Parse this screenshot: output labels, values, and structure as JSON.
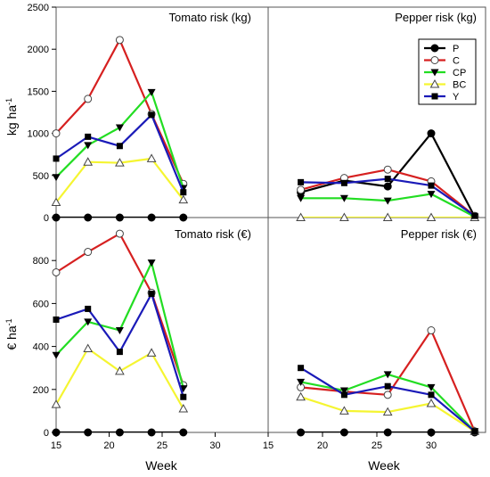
{
  "figure": {
    "ylabel_top": "kg ha",
    "ylabel_top_sup": "-1",
    "ylabel_bottom": "€ ha",
    "ylabel_bottom_sup": "-1",
    "xlabel": "Week"
  },
  "colors": {
    "P": "#000000",
    "C": "#d62020",
    "CP": "#22dd22",
    "BC": "#f5f531",
    "Y": "#1a1ab8"
  },
  "markers": {
    "P": "circle-filled",
    "C": "circle-open",
    "CP": "triangle-down-filled",
    "BC": "triangle-up-open",
    "Y": "square-filled"
  },
  "legend": {
    "placement": "top-right of Pepper risk (kg) panel",
    "entries": [
      "P",
      "C",
      "CP",
      "BC",
      "Y"
    ]
  },
  "chart_data": [
    {
      "type": "line",
      "title": "Tomato risk (kg)",
      "x": [
        15,
        18,
        21,
        24,
        27
      ],
      "xlim": [
        15,
        35
      ],
      "ylim": [
        0,
        2500
      ],
      "xticks": [],
      "yticks": [
        0,
        500,
        1000,
        1500,
        2000,
        2500
      ],
      "series": [
        {
          "name": "P",
          "values": [
            0,
            0,
            0,
            0,
            0
          ]
        },
        {
          "name": "C",
          "values": [
            1000,
            1410,
            2110,
            1230,
            400
          ]
        },
        {
          "name": "CP",
          "values": [
            480,
            860,
            1070,
            1490,
            350
          ]
        },
        {
          "name": "BC",
          "values": [
            180,
            660,
            650,
            700,
            210
          ]
        },
        {
          "name": "Y",
          "values": [
            700,
            960,
            850,
            1220,
            300
          ]
        }
      ]
    },
    {
      "type": "line",
      "title": "Pepper risk (kg)",
      "x": [
        18,
        22,
        26,
        30,
        34
      ],
      "xlim": [
        15,
        35
      ],
      "ylim": [
        0,
        2500
      ],
      "xticks": [],
      "yticks": [],
      "series": [
        {
          "name": "P",
          "values": [
            300,
            440,
            370,
            1000,
            10
          ]
        },
        {
          "name": "C",
          "values": [
            330,
            470,
            570,
            430,
            20
          ]
        },
        {
          "name": "CP",
          "values": [
            230,
            230,
            200,
            280,
            10
          ]
        },
        {
          "name": "BC",
          "values": [
            0,
            0,
            0,
            0,
            0
          ]
        },
        {
          "name": "Y",
          "values": [
            420,
            410,
            460,
            380,
            20
          ]
        }
      ]
    },
    {
      "type": "line",
      "title": "Tomato risk (€)",
      "x": [
        15,
        18,
        21,
        24,
        27
      ],
      "xlim": [
        15,
        35
      ],
      "ylim": [
        0,
        1000
      ],
      "xticks": [
        15,
        20,
        25,
        30
      ],
      "yticks": [
        0,
        200,
        400,
        600,
        800
      ],
      "series": [
        {
          "name": "P",
          "values": [
            0,
            0,
            0,
            0,
            0
          ]
        },
        {
          "name": "C",
          "values": [
            745,
            840,
            925,
            650,
            220
          ]
        },
        {
          "name": "CP",
          "values": [
            360,
            515,
            475,
            790,
            205
          ]
        },
        {
          "name": "BC",
          "values": [
            130,
            390,
            285,
            370,
            110
          ]
        },
        {
          "name": "Y",
          "values": [
            525,
            575,
            375,
            645,
            165
          ]
        }
      ]
    },
    {
      "type": "line",
      "title": "Pepper risk (€)",
      "x": [
        18,
        22,
        26,
        30,
        34
      ],
      "xlim": [
        15,
        35
      ],
      "ylim": [
        0,
        1000
      ],
      "xticks": [
        15,
        20,
        25,
        30
      ],
      "yticks": [],
      "series": [
        {
          "name": "P",
          "values": [
            0,
            0,
            0,
            0,
            0
          ]
        },
        {
          "name": "C",
          "values": [
            210,
            190,
            175,
            475,
            5
          ]
        },
        {
          "name": "CP",
          "values": [
            235,
            195,
            270,
            210,
            5
          ]
        },
        {
          "name": "BC",
          "values": [
            165,
            100,
            95,
            135,
            5
          ]
        },
        {
          "name": "Y",
          "values": [
            300,
            175,
            215,
            175,
            5
          ]
        }
      ]
    }
  ]
}
